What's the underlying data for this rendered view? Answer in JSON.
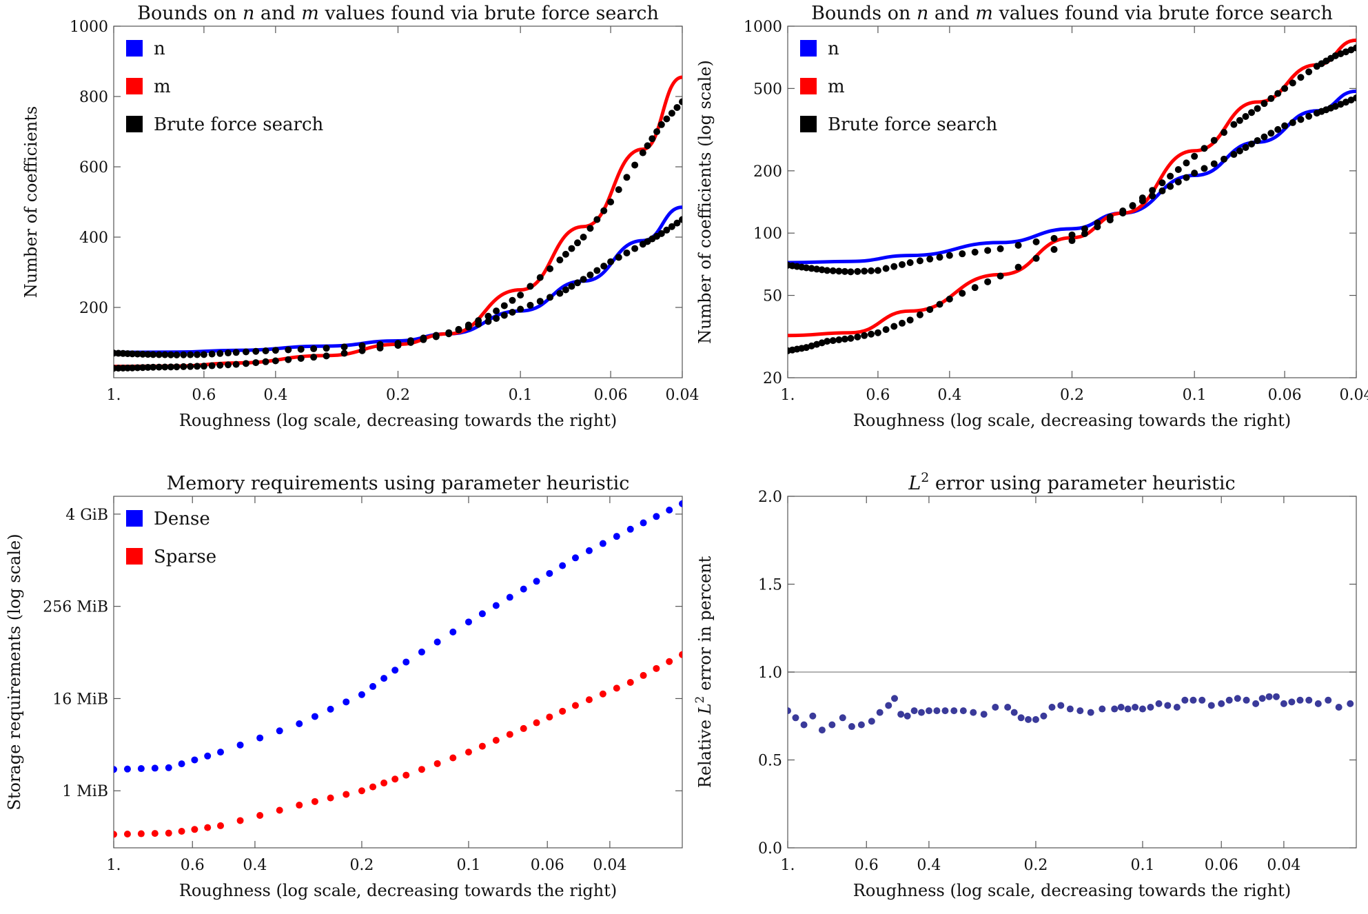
{
  "chart_data": [
    {
      "type": "scatter",
      "title": "Bounds on n and m values found via brute force search",
      "title_parts": [
        {
          "text": "Bounds on ",
          "italic": false
        },
        {
          "text": "n",
          "italic": true
        },
        {
          "text": " and ",
          "italic": false
        },
        {
          "text": "m",
          "italic": true
        },
        {
          "text": " values found via brute force search",
          "italic": false
        }
      ],
      "xlabel": "Roughness (log scale, decreasing towards the right)",
      "ylabel": "Number of coefficients",
      "x_scale": "log-reversed",
      "y_scale": "linear",
      "xlim": [
        1.0,
        0.04
      ],
      "ylim": [
        0,
        1000
      ],
      "x_ticks": [
        {
          "v": 1.0,
          "label": "1."
        },
        {
          "v": 0.6,
          "label": "0.6"
        },
        {
          "v": 0.4,
          "label": "0.4"
        },
        {
          "v": 0.2,
          "label": "0.2"
        },
        {
          "v": 0.1,
          "label": "0.1"
        },
        {
          "v": 0.06,
          "label": "0.06"
        },
        {
          "v": 0.04,
          "label": "0.04"
        }
      ],
      "y_ticks": [
        {
          "v": 200,
          "label": "200"
        },
        {
          "v": 400,
          "label": "400"
        },
        {
          "v": 600,
          "label": "600"
        },
        {
          "v": 800,
          "label": "800"
        },
        {
          "v": 1000,
          "label": "1000"
        }
      ],
      "legend_position": "top-left",
      "legend": [
        {
          "label": "n",
          "color": "#0000ff"
        },
        {
          "label": "m",
          "color": "#ff0000"
        },
        {
          "label": "Brute force search",
          "color": "#000000"
        }
      ],
      "series": [
        {
          "name": "n",
          "kind": "line",
          "color": "#0000ff",
          "x": [
            1.0,
            0.7,
            0.5,
            0.3,
            0.2,
            0.15,
            0.1,
            0.07,
            0.05,
            0.04
          ],
          "values": [
            72,
            73,
            78,
            90,
            105,
            125,
            190,
            275,
            390,
            485
          ]
        },
        {
          "name": "m",
          "kind": "line",
          "color": "#ff0000",
          "x": [
            1.0,
            0.7,
            0.5,
            0.3,
            0.2,
            0.15,
            0.1,
            0.07,
            0.05,
            0.04
          ],
          "values": [
            32,
            33,
            42,
            63,
            95,
            125,
            250,
            430,
            650,
            855
          ]
        },
        {
          "name": "Brute force search",
          "kind": "points",
          "color": "#000000",
          "x": [
            1.0,
            0.9,
            0.8,
            0.7,
            0.6,
            0.5,
            0.4,
            0.3,
            0.2,
            0.15,
            0.12,
            0.1,
            0.08,
            0.07,
            0.06,
            0.05,
            0.045,
            0.04
          ],
          "values": [
            70,
            68,
            66,
            65,
            66,
            72,
            78,
            84,
            98,
            128,
            160,
            195,
            240,
            280,
            330,
            380,
            410,
            450
          ],
          "x2": [
            1.0,
            0.9,
            0.8,
            0.7,
            0.6,
            0.5,
            0.4,
            0.3,
            0.2,
            0.15,
            0.12,
            0.1,
            0.08,
            0.07,
            0.06,
            0.05,
            0.045,
            0.04
          ],
          "values2": [
            27,
            28,
            30,
            31,
            33,
            38,
            48,
            62,
            92,
            125,
            175,
            235,
            335,
            400,
            500,
            640,
            720,
            785
          ]
        }
      ]
    },
    {
      "type": "scatter",
      "title": "Bounds on n and m values found via brute force search",
      "title_parts": [
        {
          "text": "Bounds on ",
          "italic": false
        },
        {
          "text": "n",
          "italic": true
        },
        {
          "text": " and ",
          "italic": false
        },
        {
          "text": "m",
          "italic": true
        },
        {
          "text": " values found via brute force search",
          "italic": false
        }
      ],
      "xlabel": "Roughness (log scale, decreasing towards the right)",
      "ylabel": "Number of coefficients (log scale)",
      "x_scale": "log-reversed",
      "y_scale": "log",
      "xlim": [
        1.0,
        0.04
      ],
      "ylim": [
        20,
        1000
      ],
      "x_ticks": [
        {
          "v": 1.0,
          "label": "1."
        },
        {
          "v": 0.6,
          "label": "0.6"
        },
        {
          "v": 0.4,
          "label": "0.4"
        },
        {
          "v": 0.2,
          "label": "0.2"
        },
        {
          "v": 0.1,
          "label": "0.1"
        },
        {
          "v": 0.06,
          "label": "0.06"
        },
        {
          "v": 0.04,
          "label": "0.04"
        }
      ],
      "y_ticks": [
        {
          "v": 20,
          "label": "20"
        },
        {
          "v": 50,
          "label": "50"
        },
        {
          "v": 100,
          "label": "100"
        },
        {
          "v": 200,
          "label": "200"
        },
        {
          "v": 500,
          "label": "500"
        },
        {
          "v": 1000,
          "label": "1000"
        }
      ],
      "legend_position": "top-left",
      "legend": [
        {
          "label": "n",
          "color": "#0000ff"
        },
        {
          "label": "m",
          "color": "#ff0000"
        },
        {
          "label": "Brute force search",
          "color": "#000000"
        }
      ],
      "series": [
        {
          "name": "n",
          "kind": "line",
          "color": "#0000ff",
          "x": [
            1.0,
            0.7,
            0.5,
            0.3,
            0.2,
            0.15,
            0.1,
            0.07,
            0.05,
            0.04
          ],
          "values": [
            72,
            73,
            78,
            90,
            105,
            125,
            190,
            275,
            390,
            485
          ]
        },
        {
          "name": "m",
          "kind": "line",
          "color": "#ff0000",
          "x": [
            1.0,
            0.7,
            0.5,
            0.3,
            0.2,
            0.15,
            0.1,
            0.07,
            0.05,
            0.04
          ],
          "values": [
            32,
            33,
            42,
            63,
            95,
            125,
            250,
            430,
            650,
            855
          ]
        },
        {
          "name": "Brute force search",
          "kind": "points",
          "color": "#000000",
          "x": [
            1.0,
            0.9,
            0.8,
            0.7,
            0.6,
            0.5,
            0.4,
            0.3,
            0.2,
            0.15,
            0.12,
            0.1,
            0.08,
            0.07,
            0.06,
            0.05,
            0.045,
            0.04
          ],
          "values": [
            70,
            68,
            66,
            65,
            66,
            72,
            78,
            84,
            98,
            128,
            160,
            195,
            240,
            280,
            330,
            380,
            410,
            450
          ],
          "x2": [
            1.0,
            0.9,
            0.8,
            0.7,
            0.6,
            0.5,
            0.4,
            0.3,
            0.2,
            0.15,
            0.12,
            0.1,
            0.08,
            0.07,
            0.06,
            0.05,
            0.045,
            0.04
          ],
          "values2": [
            27,
            28,
            30,
            31,
            33,
            38,
            48,
            62,
            92,
            125,
            175,
            235,
            335,
            400,
            500,
            640,
            720,
            785
          ]
        }
      ]
    },
    {
      "type": "scatter",
      "title": "Memory requirements using parameter heuristic",
      "xlabel": "Roughness (log scale, decreasing towards the right)",
      "ylabel": "Storage requirements (log scale)",
      "x_scale": "log-reversed",
      "y_scale": "log",
      "y_unit": "MiB",
      "xlim": [
        1.0,
        0.025
      ],
      "ylim": [
        0.18,
        7000
      ],
      "x_ticks": [
        {
          "v": 1.0,
          "label": "1."
        },
        {
          "v": 0.6,
          "label": "0.6"
        },
        {
          "v": 0.4,
          "label": "0.4"
        },
        {
          "v": 0.2,
          "label": "0.2"
        },
        {
          "v": 0.1,
          "label": "0.1"
        },
        {
          "v": 0.06,
          "label": "0.06"
        },
        {
          "v": 0.04,
          "label": "0.04"
        }
      ],
      "y_ticks": [
        {
          "v": 1,
          "label": "1 MiB"
        },
        {
          "v": 16,
          "label": "16 MiB"
        },
        {
          "v": 256,
          "label": "256 MiB"
        },
        {
          "v": 4096,
          "label": "4 GiB"
        }
      ],
      "legend_position": "top-left",
      "legend": [
        {
          "label": "Dense",
          "color": "#0000ff"
        },
        {
          "label": "Sparse",
          "color": "#ff0000"
        }
      ],
      "series": [
        {
          "name": "Dense",
          "kind": "points",
          "color": "#0000ff",
          "x": [
            1.0,
            0.7,
            0.5,
            0.3,
            0.2,
            0.15,
            0.1,
            0.07,
            0.05,
            0.035,
            0.025
          ],
          "values": [
            1.9,
            2.0,
            3.2,
            7.5,
            18,
            48,
            160,
            430,
            1100,
            2600,
            5600
          ]
        },
        {
          "name": "Sparse",
          "kind": "points",
          "color": "#ff0000",
          "x": [
            1.0,
            0.7,
            0.5,
            0.3,
            0.2,
            0.15,
            0.1,
            0.07,
            0.05,
            0.035,
            0.025
          ],
          "values": [
            0.27,
            0.28,
            0.35,
            0.65,
            1.0,
            1.6,
            3.2,
            6.5,
            13,
            26,
            60
          ]
        }
      ]
    },
    {
      "type": "scatter",
      "title": "L2 error using parameter heuristic",
      "title_parts": [
        {
          "text": "L",
          "italic": true
        },
        {
          "text": "2",
          "sup": true
        },
        {
          "text": " error using parameter heuristic",
          "italic": false
        }
      ],
      "xlabel": "Roughness (log scale, decreasing towards the right)",
      "ylabel": "Relative L2 error in percent",
      "ylabel_parts": [
        {
          "text": "Relative ",
          "italic": false
        },
        {
          "text": "L",
          "italic": true
        },
        {
          "text": "2",
          "sup": true
        },
        {
          "text": " error in percent",
          "italic": false
        }
      ],
      "x_scale": "log-reversed",
      "y_scale": "linear",
      "xlim": [
        1.0,
        0.025
      ],
      "ylim": [
        0,
        2.0
      ],
      "reference_line": 1.0,
      "x_ticks": [
        {
          "v": 1.0,
          "label": "1."
        },
        {
          "v": 0.6,
          "label": "0.6"
        },
        {
          "v": 0.4,
          "label": "0.4"
        },
        {
          "v": 0.2,
          "label": "0.2"
        },
        {
          "v": 0.1,
          "label": "0.1"
        },
        {
          "v": 0.06,
          "label": "0.06"
        },
        {
          "v": 0.04,
          "label": "0.04"
        }
      ],
      "y_ticks": [
        {
          "v": 0.0,
          "label": "0.0"
        },
        {
          "v": 0.5,
          "label": "0.5"
        },
        {
          "v": 1.0,
          "label": "1.0"
        },
        {
          "v": 1.5,
          "label": "1.5"
        },
        {
          "v": 2.0,
          "label": "2.0"
        }
      ],
      "series": [
        {
          "name": "",
          "kind": "points",
          "color": "#3a3a9a",
          "x": [
            1.0,
            0.95,
            0.9,
            0.85,
            0.8,
            0.75,
            0.7,
            0.66,
            0.62,
            0.58,
            0.55,
            0.52,
            0.5,
            0.48,
            0.46,
            0.44,
            0.42,
            0.4,
            0.38,
            0.36,
            0.34,
            0.32,
            0.3,
            0.28,
            0.26,
            0.24,
            0.23,
            0.22,
            0.21,
            0.2,
            0.19,
            0.18,
            0.17,
            0.16,
            0.15,
            0.14,
            0.13,
            0.12,
            0.115,
            0.11,
            0.105,
            0.1,
            0.095,
            0.09,
            0.085,
            0.08,
            0.076,
            0.072,
            0.068,
            0.064,
            0.06,
            0.057,
            0.054,
            0.051,
            0.048,
            0.046,
            0.044,
            0.042,
            0.04,
            0.038,
            0.036,
            0.034,
            0.032,
            0.03,
            0.028,
            0.026
          ],
          "values": [
            0.78,
            0.74,
            0.7,
            0.75,
            0.67,
            0.7,
            0.74,
            0.69,
            0.7,
            0.72,
            0.77,
            0.81,
            0.85,
            0.76,
            0.75,
            0.78,
            0.77,
            0.78,
            0.78,
            0.78,
            0.78,
            0.78,
            0.77,
            0.76,
            0.8,
            0.8,
            0.77,
            0.74,
            0.73,
            0.73,
            0.75,
            0.8,
            0.81,
            0.79,
            0.78,
            0.77,
            0.79,
            0.79,
            0.8,
            0.79,
            0.8,
            0.79,
            0.8,
            0.82,
            0.81,
            0.8,
            0.84,
            0.84,
            0.84,
            0.81,
            0.82,
            0.84,
            0.85,
            0.84,
            0.82,
            0.85,
            0.86,
            0.86,
            0.82,
            0.83,
            0.84,
            0.84,
            0.82,
            0.84,
            0.8,
            0.82
          ]
        }
      ]
    }
  ]
}
